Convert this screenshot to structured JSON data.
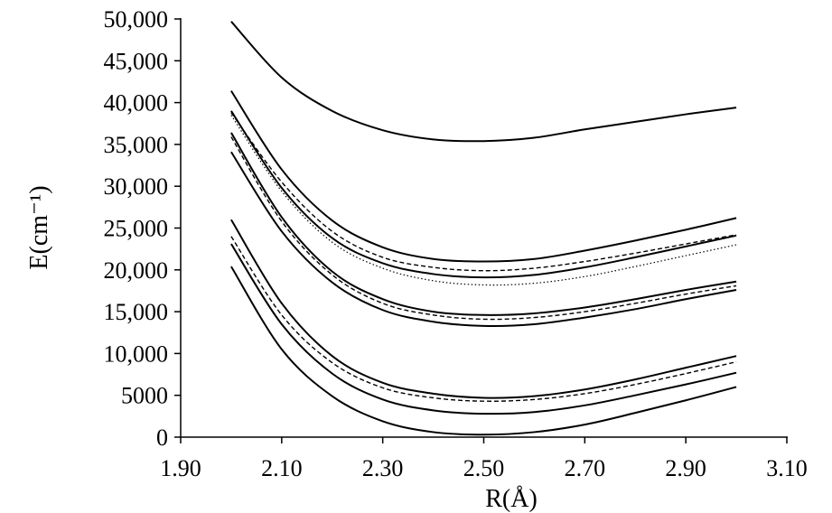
{
  "chart_data": {
    "type": "line",
    "title": "",
    "xlabel": "R(Å)",
    "ylabel": "E(cm⁻¹)",
    "xlim": [
      1.9,
      3.1
    ],
    "ylim": [
      0,
      50000
    ],
    "xticks": [
      1.9,
      2.1,
      2.3,
      2.5,
      2.7,
      2.9,
      3.1
    ],
    "xtick_labels": [
      "1.90",
      "2.10",
      "2.30",
      "2.50",
      "2.70",
      "2.90",
      "3.10"
    ],
    "yticks": [
      0,
      5000,
      10000,
      15000,
      20000,
      25000,
      30000,
      35000,
      40000,
      45000,
      50000
    ],
    "ytick_labels": [
      "0",
      "5000",
      "10,000",
      "15,000",
      "20,000",
      "25,000",
      "30,000",
      "35,000",
      "40,000",
      "45,000",
      "50,000"
    ],
    "grid": false,
    "legend": "none",
    "line_color": "#000000",
    "series": [
      {
        "style": "solid",
        "x": [
          2.0,
          2.1,
          2.2,
          2.3,
          2.4,
          2.5,
          2.6,
          2.7,
          2.8,
          2.9,
          3.0
        ],
        "values": [
          49700,
          43000,
          39000,
          36700,
          35600,
          35400,
          35800,
          36800,
          37700,
          38600,
          39400
        ]
      },
      {
        "style": "solid",
        "x": [
          2.0,
          2.1,
          2.2,
          2.3,
          2.4,
          2.5,
          2.6,
          2.7,
          2.8,
          2.9,
          3.0
        ],
        "values": [
          41400,
          32000,
          25900,
          22700,
          21300,
          21000,
          21300,
          22300,
          23500,
          24800,
          26200
        ]
      },
      {
        "style": "dashed",
        "x": [
          2.0,
          2.1,
          2.2,
          2.3,
          2.4,
          2.5,
          2.6,
          2.7,
          2.8,
          2.9,
          3.0
        ],
        "values": [
          38800,
          30500,
          24600,
          21500,
          20300,
          19900,
          20200,
          21000,
          22000,
          23100,
          24200
        ]
      },
      {
        "style": "solid",
        "x": [
          2.0,
          2.1,
          2.2,
          2.3,
          2.4,
          2.5,
          2.6,
          2.7,
          2.8,
          2.9,
          3.0
        ],
        "values": [
          39000,
          29800,
          23800,
          20800,
          19500,
          19100,
          19400,
          20300,
          21500,
          22800,
          24100
        ]
      },
      {
        "style": "dotted",
        "x": [
          2.0,
          2.1,
          2.2,
          2.3,
          2.4,
          2.5,
          2.6,
          2.7,
          2.8,
          2.9,
          3.0
        ],
        "values": [
          38500,
          29400,
          23300,
          20200,
          18700,
          18200,
          18400,
          19200,
          20400,
          21700,
          23000
        ]
      },
      {
        "style": "solid",
        "x": [
          2.0,
          2.1,
          2.2,
          2.3,
          2.4,
          2.5,
          2.6,
          2.7,
          2.8,
          2.9,
          3.0
        ],
        "values": [
          36400,
          26300,
          19800,
          16500,
          15000,
          14600,
          14800,
          15500,
          16500,
          17600,
          18600
        ]
      },
      {
        "style": "dashed",
        "x": [
          2.0,
          2.1,
          2.2,
          2.3,
          2.4,
          2.5,
          2.6,
          2.7,
          2.8,
          2.9,
          3.0
        ],
        "values": [
          35900,
          25800,
          19400,
          16000,
          14600,
          14100,
          14300,
          15000,
          16000,
          17100,
          18100
        ]
      },
      {
        "style": "solid",
        "x": [
          2.0,
          2.1,
          2.2,
          2.3,
          2.4,
          2.5,
          2.6,
          2.7,
          2.8,
          2.9,
          3.0
        ],
        "values": [
          34100,
          24600,
          18500,
          15200,
          13800,
          13300,
          13500,
          14300,
          15300,
          16500,
          17600
        ]
      },
      {
        "style": "solid",
        "x": [
          2.0,
          2.1,
          2.2,
          2.3,
          2.4,
          2.5,
          2.6,
          2.7,
          2.8,
          2.9,
          3.0
        ],
        "values": [
          26000,
          16000,
          9700,
          6500,
          5200,
          4700,
          4900,
          5700,
          6900,
          8300,
          9700
        ]
      },
      {
        "style": "dashed",
        "x": [
          2.0,
          2.1,
          2.2,
          2.3,
          2.4,
          2.5,
          2.6,
          2.7,
          2.8,
          2.9,
          3.0
        ],
        "values": [
          24000,
          14600,
          8900,
          5900,
          4700,
          4300,
          4500,
          5200,
          6300,
          7600,
          9000
        ]
      },
      {
        "style": "solid",
        "x": [
          2.0,
          2.1,
          2.2,
          2.3,
          2.4,
          2.5,
          2.6,
          2.7,
          2.8,
          2.9,
          3.0
        ],
        "values": [
          23100,
          13500,
          7600,
          4500,
          3200,
          2800,
          3000,
          3800,
          5000,
          6300,
          7700
        ]
      },
      {
        "style": "solid",
        "x": [
          2.0,
          2.1,
          2.2,
          2.3,
          2.4,
          2.5,
          2.6,
          2.7,
          2.8,
          2.9,
          3.0
        ],
        "values": [
          20400,
          10500,
          4900,
          1900,
          600,
          300,
          600,
          1500,
          2900,
          4400,
          6000
        ]
      }
    ]
  }
}
